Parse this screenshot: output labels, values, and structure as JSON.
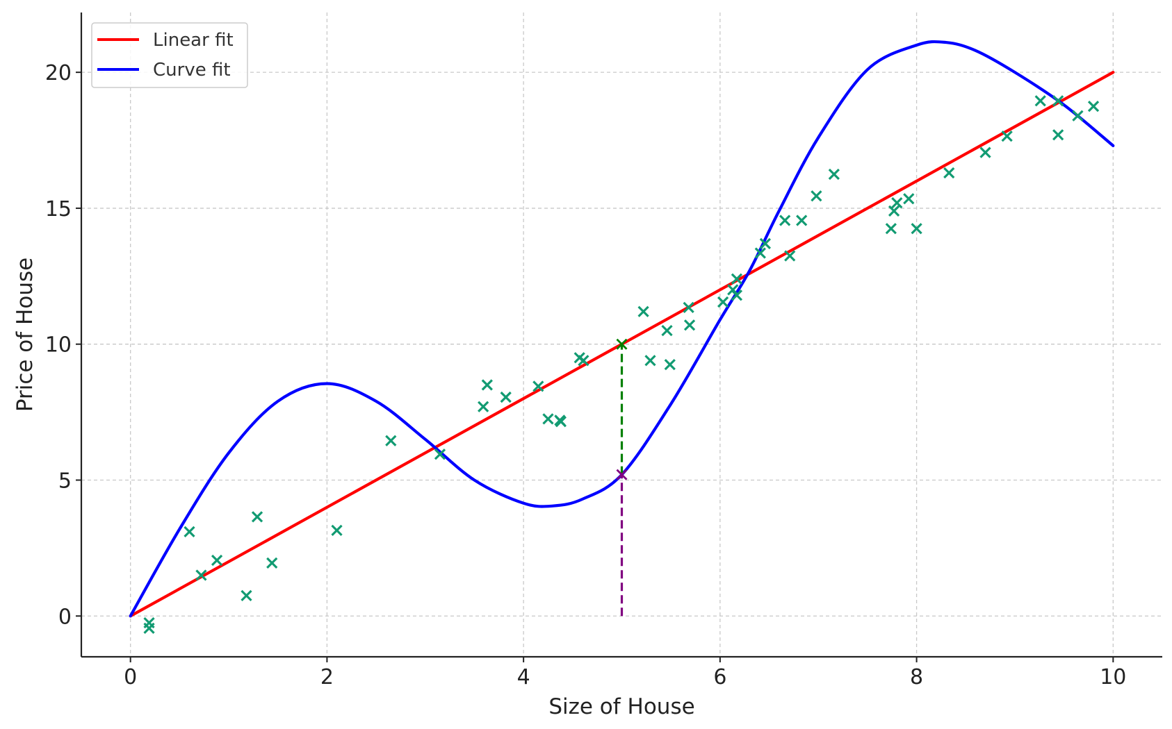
{
  "chart_data": {
    "type": "scatter",
    "title": "",
    "xlabel": "Size of House",
    "ylabel": "Price of House",
    "xlim": [
      -0.5,
      10.5
    ],
    "ylim": [
      -1.5,
      22.2
    ],
    "xticks": [
      0,
      2,
      4,
      6,
      8,
      10
    ],
    "yticks": [
      0,
      5,
      10,
      15,
      20
    ],
    "grid": true,
    "legend_position": "top-left",
    "colors": {
      "linear": "#ff0000",
      "curve": "#0000ff",
      "points": "#129b72",
      "linear_marker": "#008000",
      "curve_marker": "#800080"
    },
    "series": [
      {
        "name": "Linear fit",
        "kind": "line",
        "color": "#ff0000",
        "x": [
          0,
          10
        ],
        "y": [
          0,
          20
        ]
      },
      {
        "name": "Curve fit",
        "kind": "line",
        "color": "#0000ff",
        "x": [
          0,
          0.5,
          1.0,
          1.5,
          2.0,
          2.5,
          3.0,
          3.5,
          4.0,
          4.3,
          4.6,
          5.0,
          5.5,
          6.0,
          6.3,
          6.6,
          7.0,
          7.5,
          8.0,
          8.3,
          8.6,
          9.0,
          9.5,
          10.0
        ],
        "y": [
          0,
          3.2,
          6.0,
          7.9,
          8.55,
          7.9,
          6.5,
          5.0,
          4.15,
          4.05,
          4.3,
          5.2,
          7.8,
          10.9,
          12.7,
          14.9,
          17.6,
          20.1,
          21.0,
          21.1,
          20.8,
          20.0,
          18.8,
          17.3
        ]
      },
      {
        "name": "",
        "kind": "scatter",
        "color": "#129b72",
        "points": [
          [
            0.19,
            -0.25
          ],
          [
            0.19,
            -0.45
          ],
          [
            0.6,
            3.1
          ],
          [
            0.72,
            1.5
          ],
          [
            0.88,
            2.05
          ],
          [
            1.18,
            0.75
          ],
          [
            1.29,
            3.65
          ],
          [
            1.44,
            1.95
          ],
          [
            2.1,
            3.15
          ],
          [
            2.65,
            6.45
          ],
          [
            3.15,
            5.95
          ],
          [
            3.59,
            7.7
          ],
          [
            3.63,
            8.5
          ],
          [
            3.82,
            8.05
          ],
          [
            4.15,
            8.45
          ],
          [
            4.25,
            7.25
          ],
          [
            4.37,
            7.2
          ],
          [
            4.38,
            7.15
          ],
          [
            4.57,
            9.5
          ],
          [
            4.61,
            9.4
          ],
          [
            5.22,
            11.2
          ],
          [
            5.29,
            9.4
          ],
          [
            5.46,
            10.5
          ],
          [
            5.49,
            9.25
          ],
          [
            5.68,
            11.35
          ],
          [
            5.69,
            10.7
          ],
          [
            6.03,
            11.55
          ],
          [
            6.13,
            12.0
          ],
          [
            6.17,
            12.4
          ],
          [
            6.17,
            11.8
          ],
          [
            6.41,
            13.35
          ],
          [
            6.46,
            13.7
          ],
          [
            6.66,
            14.55
          ],
          [
            6.71,
            13.25
          ],
          [
            6.83,
            14.55
          ],
          [
            6.98,
            15.45
          ],
          [
            7.16,
            16.25
          ],
          [
            7.74,
            14.25
          ],
          [
            7.77,
            14.9
          ],
          [
            7.8,
            15.2
          ],
          [
            7.92,
            15.35
          ],
          [
            8.0,
            14.25
          ],
          [
            8.33,
            16.3
          ],
          [
            8.7,
            17.05
          ],
          [
            8.92,
            17.65
          ],
          [
            9.26,
            18.95
          ],
          [
            9.44,
            18.95
          ],
          [
            9.44,
            17.7
          ],
          [
            9.64,
            18.4
          ],
          [
            9.8,
            18.75
          ]
        ]
      }
    ],
    "annotations": [
      {
        "kind": "vline",
        "x": 5,
        "y_from": 5.2,
        "y_to": 10,
        "color": "#008000",
        "style": "dashed"
      },
      {
        "kind": "vline",
        "x": 5,
        "y_from": 0,
        "y_to": 5.2,
        "color": "#800080",
        "style": "dashed"
      },
      {
        "kind": "marker",
        "x": 5,
        "y": 10,
        "color": "#008000"
      },
      {
        "kind": "marker",
        "x": 5,
        "y": 5.2,
        "color": "#800080"
      }
    ]
  }
}
